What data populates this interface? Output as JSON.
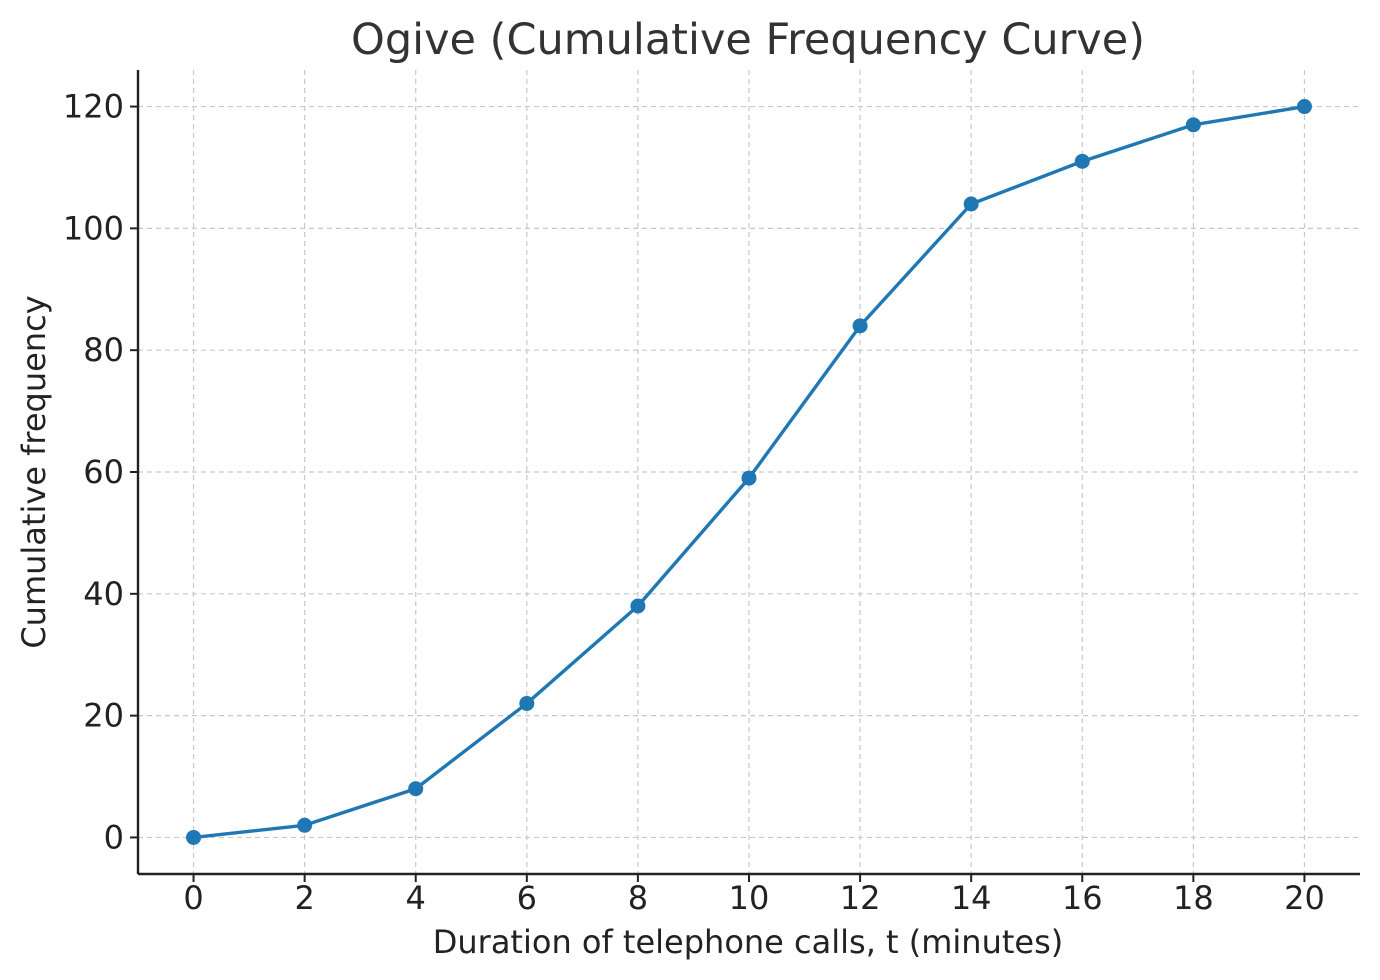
{
  "chart_data": {
    "type": "line",
    "title": "Ogive (Cumulative Frequency Curve)",
    "xlabel": "Duration of telephone calls, t (minutes)",
    "ylabel": "Cumulative frequency",
    "x": [
      0,
      2,
      4,
      6,
      8,
      10,
      12,
      14,
      16,
      18,
      20
    ],
    "series": [
      {
        "values": [
          0,
          2,
          8,
          22,
          38,
          59,
          84,
          104,
          111,
          117,
          120
        ],
        "color": "#1f77b4",
        "marker": "circle"
      }
    ],
    "xlim": [
      -1,
      21
    ],
    "ylim": [
      -6,
      126
    ],
    "xticks": [
      0,
      2,
      4,
      6,
      8,
      10,
      12,
      14,
      16,
      18,
      20
    ],
    "yticks": [
      0,
      20,
      40,
      60,
      80,
      100,
      120
    ],
    "grid": true,
    "grid_style": "dashed",
    "grid_color": "#c8c8c8"
  }
}
